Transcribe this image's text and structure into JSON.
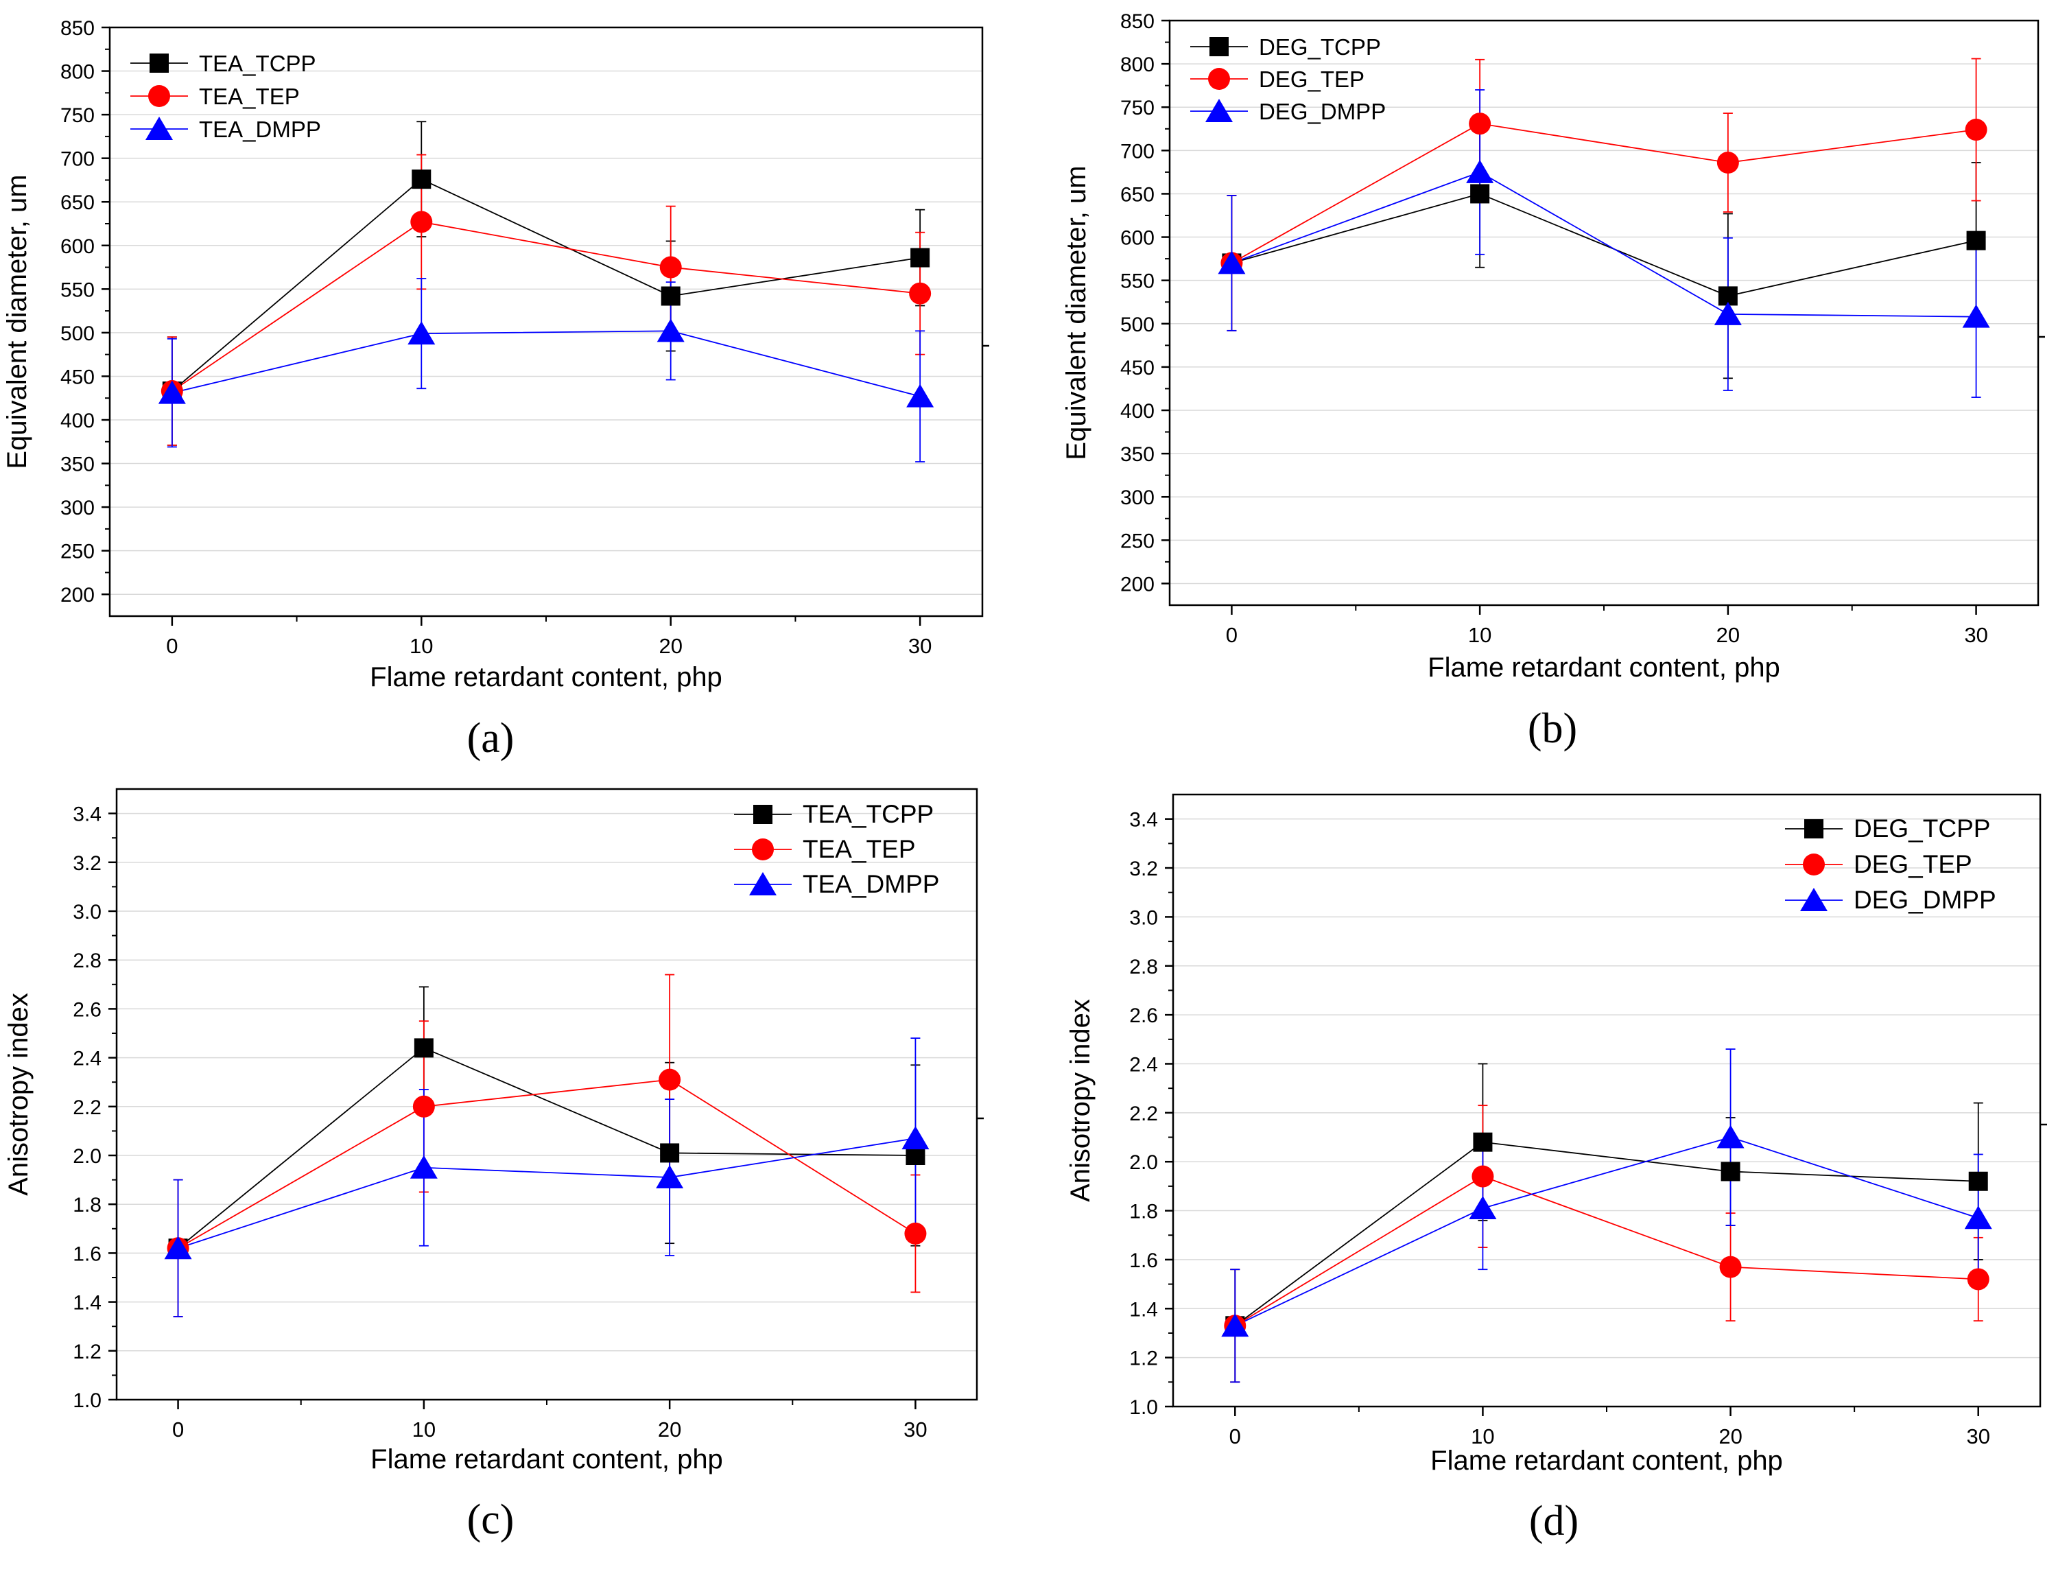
{
  "chart_data": [
    {
      "id": "a",
      "type": "line",
      "caption": "(a)",
      "xlabel": "Flame retardant content, php",
      "ylabel": "Equivalent diameter, um",
      "x": [
        0,
        10,
        20,
        30
      ],
      "xlim": [
        -2.5,
        32.5
      ],
      "ylim": [
        175,
        850
      ],
      "xticks": [
        0,
        10,
        20,
        30
      ],
      "yticks": [
        200,
        250,
        300,
        350,
        400,
        450,
        500,
        550,
        600,
        650,
        700,
        750,
        800,
        850
      ],
      "ytick_labels": [
        "200",
        "250",
        "300",
        "350",
        "400",
        "450",
        "500",
        "550",
        "600",
        "650",
        "700",
        "750",
        "800",
        "850"
      ],
      "grid": true,
      "legend_position": "top-left",
      "series": [
        {
          "name": "TEA_TCPP",
          "color": "#000000",
          "marker": "square",
          "values": [
            433,
            676,
            542,
            586
          ],
          "errors": [
            62,
            66,
            63,
            55
          ]
        },
        {
          "name": "TEA_TEP",
          "color": "#ff0000",
          "marker": "circle",
          "values": [
            433,
            627,
            575,
            545
          ],
          "errors": [
            62,
            77,
            70,
            70
          ]
        },
        {
          "name": "TEA_DMPP",
          "color": "#0000ff",
          "marker": "triangle",
          "values": [
            431,
            499,
            502,
            427
          ],
          "errors": [
            62,
            63,
            56,
            75
          ]
        }
      ]
    },
    {
      "id": "b",
      "type": "line",
      "caption": "(b)",
      "xlabel": "Flame retardant content, php",
      "ylabel": "Equivalent diameter, um",
      "x": [
        0,
        10,
        20,
        30
      ],
      "xlim": [
        -2.5,
        32.5
      ],
      "ylim": [
        175,
        850
      ],
      "xticks": [
        0,
        10,
        20,
        30
      ],
      "yticks": [
        200,
        250,
        300,
        350,
        400,
        450,
        500,
        550,
        600,
        650,
        700,
        750,
        800,
        850
      ],
      "ytick_labels": [
        "200",
        "250",
        "300",
        "350",
        "400",
        "450",
        "500",
        "550",
        "600",
        "650",
        "700",
        "750",
        "800",
        "850"
      ],
      "grid": true,
      "legend_position": "top-left",
      "series": [
        {
          "name": "DEG_TCPP",
          "color": "#000000",
          "marker": "square",
          "values": [
            570,
            650,
            532,
            596
          ],
          "errors": [
            78,
            85,
            95,
            90
          ]
        },
        {
          "name": "DEG_TEP",
          "color": "#ff0000",
          "marker": "circle",
          "values": [
            570,
            731,
            686,
            724
          ],
          "errors": [
            78,
            74,
            57,
            82
          ]
        },
        {
          "name": "DEG_DMPP",
          "color": "#0000ff",
          "marker": "triangle",
          "values": [
            570,
            675,
            511,
            508
          ],
          "errors": [
            78,
            95,
            88,
            93
          ]
        }
      ]
    },
    {
      "id": "c",
      "type": "line",
      "caption": "(c)",
      "xlabel": "Flame retardant content, php",
      "ylabel": "Anisotropy index",
      "x": [
        0,
        10,
        20,
        30
      ],
      "xlim": [
        -2.5,
        32.5
      ],
      "ylim": [
        1.0,
        3.5
      ],
      "xticks": [
        0,
        10,
        20,
        30
      ],
      "yticks": [
        1.0,
        1.2,
        1.4,
        1.6,
        1.8,
        2.0,
        2.2,
        2.4,
        2.6,
        2.8,
        3.0,
        3.2,
        3.4
      ],
      "ytick_labels": [
        "1.0",
        "1.2",
        "1.4",
        "1.6",
        "1.8",
        "2.0",
        "2.2",
        "2.4",
        "2.6",
        "2.8",
        "3.0",
        "3.2",
        "3.4"
      ],
      "grid": true,
      "legend_position": "top-right",
      "series": [
        {
          "name": "TEA_TCPP",
          "color": "#000000",
          "marker": "square",
          "values": [
            1.62,
            2.44,
            2.01,
            2.0
          ],
          "errors": [
            0.28,
            0.25,
            0.37,
            0.37
          ]
        },
        {
          "name": "TEA_TEP",
          "color": "#ff0000",
          "marker": "circle",
          "values": [
            1.62,
            2.2,
            2.31,
            1.68
          ],
          "errors": [
            0.28,
            0.35,
            0.43,
            0.24
          ]
        },
        {
          "name": "TEA_DMPP",
          "color": "#0000ff",
          "marker": "triangle",
          "values": [
            1.62,
            1.95,
            1.91,
            2.07
          ],
          "errors": [
            0.28,
            0.32,
            0.32,
            0.41
          ]
        }
      ]
    },
    {
      "id": "d",
      "type": "line",
      "caption": "(d)",
      "xlabel": "Flame retardant content, php",
      "ylabel": "Anisotropy index",
      "x": [
        0,
        10,
        20,
        30
      ],
      "xlim": [
        -2.5,
        32.5
      ],
      "ylim": [
        1.0,
        3.5
      ],
      "xticks": [
        0,
        10,
        20,
        30
      ],
      "yticks": [
        1.0,
        1.2,
        1.4,
        1.6,
        1.8,
        2.0,
        2.2,
        2.4,
        2.6,
        2.8,
        3.0,
        3.2,
        3.4
      ],
      "ytick_labels": [
        "1.0",
        "1.2",
        "1.4",
        "1.6",
        "1.8",
        "2.0",
        "2.2",
        "2.4",
        "2.6",
        "2.8",
        "3.0",
        "3.2",
        "3.4"
      ],
      "grid": true,
      "legend_position": "top-right",
      "series": [
        {
          "name": "DEG_TCPP",
          "color": "#000000",
          "marker": "square",
          "values": [
            1.33,
            2.08,
            1.96,
            1.92
          ],
          "errors": [
            0.23,
            0.32,
            0.22,
            0.32
          ]
        },
        {
          "name": "DEG_TEP",
          "color": "#ff0000",
          "marker": "circle",
          "values": [
            1.33,
            1.94,
            1.57,
            1.52
          ],
          "errors": [
            0.23,
            0.29,
            0.22,
            0.17
          ]
        },
        {
          "name": "DEG_DMPP",
          "color": "#0000ff",
          "marker": "triangle",
          "values": [
            1.33,
            1.81,
            2.1,
            1.77
          ],
          "errors": [
            0.23,
            0.25,
            0.36,
            0.26
          ]
        }
      ]
    }
  ]
}
